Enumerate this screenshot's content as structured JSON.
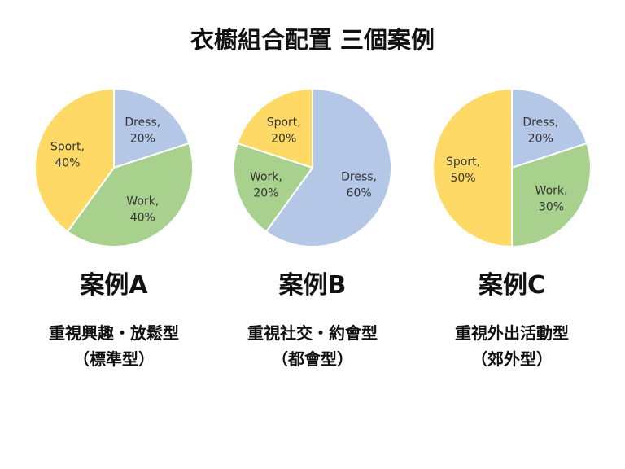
{
  "title": "衣櫥組合配置 三個案例",
  "colors": {
    "dress": "#b4c7e7",
    "work": "#a9d18e",
    "sport": "#ffd966",
    "border": "#ffffff"
  },
  "chart_data": [
    {
      "type": "pie",
      "title": "案例A",
      "subtitle": "重視興趣・放鬆型",
      "note": "（標準型）",
      "labels": [
        "Dress,",
        "Work,",
        "Sport,"
      ],
      "values": [
        20,
        40,
        40
      ],
      "value_labels": [
        "20%",
        "40%",
        "40%"
      ]
    },
    {
      "type": "pie",
      "title": "案例B",
      "subtitle": "重視社交・約會型",
      "note": "（都會型）",
      "labels": [
        "Dress,",
        "Work,",
        "Sport,"
      ],
      "values": [
        60,
        20,
        20
      ],
      "value_labels": [
        "60%",
        "20%",
        "20%"
      ]
    },
    {
      "type": "pie",
      "title": "案例C",
      "subtitle": "重視外出活動型",
      "note": "（郊外型）",
      "labels": [
        "Dress,",
        "Work,",
        "Sport,"
      ],
      "values": [
        20,
        30,
        50
      ],
      "value_labels": [
        "20%",
        "30%",
        "50%"
      ]
    }
  ]
}
